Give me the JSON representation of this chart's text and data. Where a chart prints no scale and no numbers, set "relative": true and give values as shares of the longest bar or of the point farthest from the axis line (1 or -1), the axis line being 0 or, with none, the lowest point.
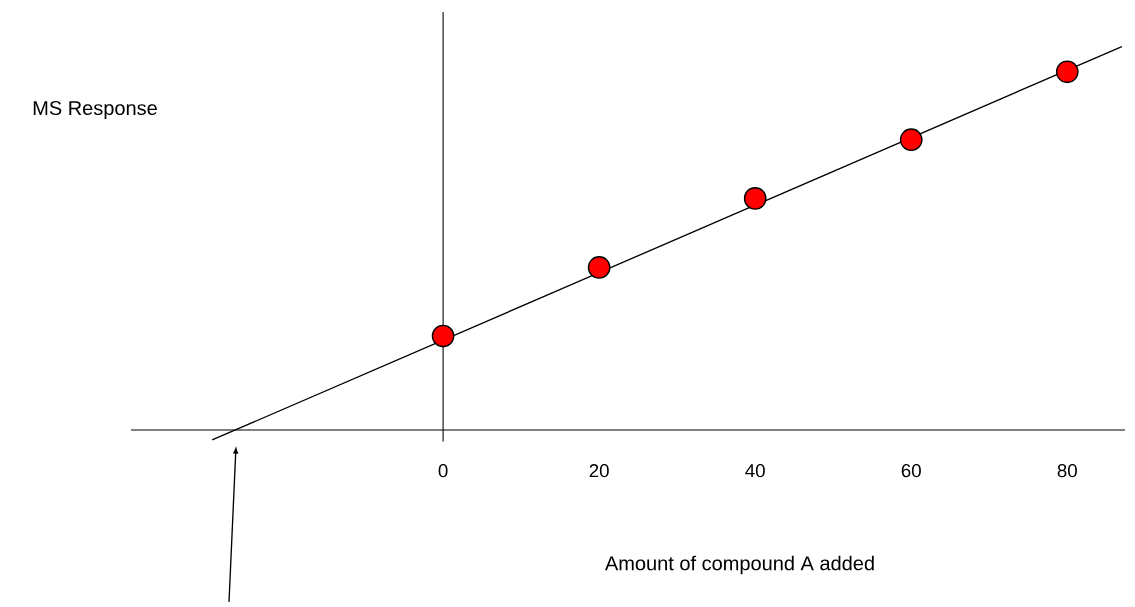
{
  "chart_data": {
    "type": "scatter",
    "relative": true,
    "xlabel": "Amount of compound A added",
    "ylabel": "MS Response",
    "xlim": [
      -40,
      87.4
    ],
    "xticks": [
      0,
      20,
      40,
      60,
      80
    ],
    "series": [
      {
        "marker": "circle",
        "color": "#ff0000",
        "x": [
          0,
          20,
          40,
          60,
          80
        ],
        "values": [
          0.245,
          0.424,
          0.604,
          0.757,
          0.934
        ]
      },
      {
        "type": "line",
        "marker": "none",
        "color": "#000000",
        "x": [
          -29.6,
          87
        ],
        "values": [
          -0.026,
          1
        ]
      }
    ]
  }
}
